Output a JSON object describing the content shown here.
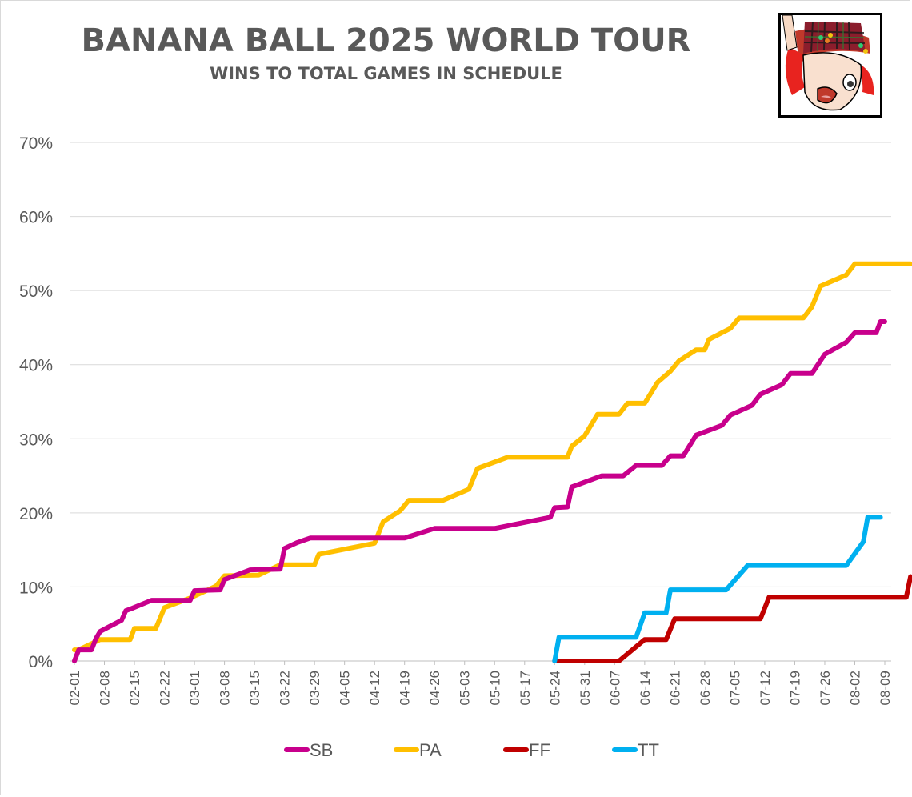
{
  "chart_data": {
    "type": "line",
    "title": "BANANA BALL 2025 WORLD TOUR",
    "subtitle": "WINS TO TOTAL GAMES IN SCHEDULE",
    "xlabel": "",
    "ylabel": "",
    "ylim": [
      0,
      0.7
    ],
    "y_ticks": [
      "0%",
      "10%",
      "20%",
      "30%",
      "40%",
      "50%",
      "60%",
      "70%"
    ],
    "x_ticks": [
      "02-01",
      "02-08",
      "02-15",
      "02-22",
      "03-01",
      "03-08",
      "03-15",
      "03-22",
      "03-29",
      "04-05",
      "04-12",
      "04-19",
      "04-26",
      "05-03",
      "05-10",
      "05-17",
      "05-24",
      "05-31",
      "06-07",
      "06-14",
      "06-21",
      "06-28",
      "07-05",
      "07-12",
      "07-19",
      "07-26",
      "08-02",
      "08-09"
    ],
    "grid": true,
    "legend_position": "bottom",
    "series": [
      {
        "name": "SB",
        "color": "#c8008c",
        "points": [
          [
            "02-01",
            0.0
          ],
          [
            "02-02",
            0.015
          ],
          [
            "02-04",
            0.015
          ],
          [
            "02-05",
            0.015
          ],
          [
            "02-06",
            0.03
          ],
          [
            "02-07",
            0.04
          ],
          [
            "02-12",
            0.055
          ],
          [
            "02-13",
            0.068
          ],
          [
            "02-14",
            0.07
          ],
          [
            "02-19",
            0.082
          ],
          [
            "02-24",
            0.082
          ],
          [
            "02-28",
            0.082
          ],
          [
            "03-01",
            0.095
          ],
          [
            "03-07",
            0.096
          ],
          [
            "03-08",
            0.11
          ],
          [
            "03-14",
            0.123
          ],
          [
            "03-21",
            0.124
          ],
          [
            "03-22",
            0.152
          ],
          [
            "03-25",
            0.16
          ],
          [
            "03-28",
            0.166
          ],
          [
            "04-19",
            0.166
          ],
          [
            "04-26",
            0.179
          ],
          [
            "05-10",
            0.179
          ],
          [
            "05-23",
            0.194
          ],
          [
            "05-24",
            0.207
          ],
          [
            "05-27",
            0.208
          ],
          [
            "05-28",
            0.235
          ],
          [
            "06-04",
            0.25
          ],
          [
            "06-09",
            0.25
          ],
          [
            "06-12",
            0.264
          ],
          [
            "06-18",
            0.264
          ],
          [
            "06-20",
            0.277
          ],
          [
            "06-23",
            0.277
          ],
          [
            "06-26",
            0.305
          ],
          [
            "07-02",
            0.318
          ],
          [
            "07-04",
            0.332
          ],
          [
            "07-09",
            0.345
          ],
          [
            "07-11",
            0.36
          ],
          [
            "07-16",
            0.373
          ],
          [
            "07-18",
            0.388
          ],
          [
            "07-23",
            0.388
          ],
          [
            "07-26",
            0.414
          ],
          [
            "07-31",
            0.43
          ],
          [
            "08-02",
            0.443
          ],
          [
            "08-07",
            0.443
          ],
          [
            "08-08",
            0.458
          ],
          [
            "08-09",
            0.458
          ]
        ]
      },
      {
        "name": "PA",
        "color": "#ffbf00",
        "points": [
          [
            "02-01",
            0.015
          ],
          [
            "02-02",
            0.015
          ],
          [
            "02-07",
            0.029
          ],
          [
            "02-14",
            0.029
          ],
          [
            "02-15",
            0.044
          ],
          [
            "02-20",
            0.044
          ],
          [
            "02-22",
            0.072
          ],
          [
            "02-28",
            0.085
          ],
          [
            "03-06",
            0.101
          ],
          [
            "03-08",
            0.115
          ],
          [
            "03-16",
            0.116
          ],
          [
            "03-21",
            0.13
          ],
          [
            "03-29",
            0.13
          ],
          [
            "03-30",
            0.144
          ],
          [
            "04-12",
            0.159
          ],
          [
            "04-14",
            0.188
          ],
          [
            "04-18",
            0.203
          ],
          [
            "04-20",
            0.217
          ],
          [
            "04-28",
            0.217
          ],
          [
            "05-04",
            0.232
          ],
          [
            "05-06",
            0.26
          ],
          [
            "05-13",
            0.275
          ],
          [
            "05-22",
            0.275
          ],
          [
            "05-27",
            0.275
          ],
          [
            "05-28",
            0.29
          ],
          [
            "05-31",
            0.304
          ],
          [
            "06-03",
            0.333
          ],
          [
            "06-08",
            0.333
          ],
          [
            "06-10",
            0.348
          ],
          [
            "06-14",
            0.348
          ],
          [
            "06-17",
            0.376
          ],
          [
            "06-20",
            0.391
          ],
          [
            "06-22",
            0.405
          ],
          [
            "06-26",
            0.42
          ],
          [
            "06-28",
            0.42
          ],
          [
            "06-29",
            0.434
          ],
          [
            "07-04",
            0.449
          ],
          [
            "07-06",
            0.463
          ],
          [
            "07-21",
            0.463
          ],
          [
            "07-23",
            0.478
          ],
          [
            "07-25",
            0.506
          ],
          [
            "07-31",
            0.521
          ],
          [
            "08-02",
            0.536
          ],
          [
            "08-15",
            0.536
          ]
        ]
      },
      {
        "name": "FF",
        "color": "#c00000",
        "points": [
          [
            "05-24",
            0.0
          ],
          [
            "06-08",
            0.0
          ],
          [
            "06-14",
            0.029
          ],
          [
            "06-19",
            0.029
          ],
          [
            "06-21",
            0.057
          ],
          [
            "07-11",
            0.057
          ],
          [
            "07-13",
            0.086
          ],
          [
            "08-14",
            0.086
          ],
          [
            "08-15",
            0.114
          ]
        ]
      },
      {
        "name": "TT",
        "color": "#00b0f0",
        "points": [
          [
            "05-24",
            0.0
          ],
          [
            "05-25",
            0.032
          ],
          [
            "06-12",
            0.032
          ],
          [
            "06-14",
            0.065
          ],
          [
            "06-19",
            0.065
          ],
          [
            "06-20",
            0.096
          ],
          [
            "07-03",
            0.096
          ],
          [
            "07-08",
            0.129
          ],
          [
            "07-22",
            0.129
          ],
          [
            "07-31",
            0.129
          ],
          [
            "08-04",
            0.161
          ],
          [
            "08-05",
            0.194
          ],
          [
            "08-08",
            0.194
          ]
        ]
      }
    ]
  },
  "avatar": {
    "icon": "cartoon-avatar-icon"
  }
}
